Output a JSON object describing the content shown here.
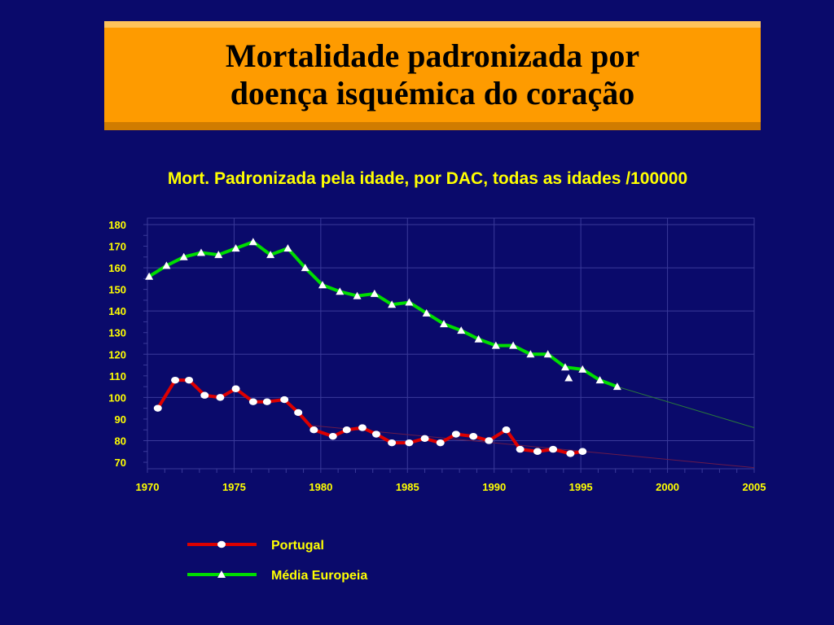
{
  "slide": {
    "title_line1": "Mortalidade padronizada por",
    "title_line2": "doença isquémica do coração",
    "background": "#0a0a6b",
    "title_bg": "#fe9b00"
  },
  "chart_data": {
    "type": "line",
    "title": "Mort. Padronizada pela idade, por DAC, todas as idades /100000",
    "xlabel": "",
    "ylabel": "",
    "xlim": [
      1970,
      2005
    ],
    "ylim": [
      67,
      183
    ],
    "x_ticks": [
      "1970",
      "1975",
      "1980",
      "1985",
      "1990",
      "1995",
      "2000",
      "2005"
    ],
    "y_ticks": [
      "180",
      "170",
      "160",
      "150",
      "140",
      "130",
      "120",
      "110",
      "100",
      "90",
      "80",
      "70"
    ],
    "grid": true,
    "legend_position": "bottom",
    "series": [
      {
        "name": "Portugal",
        "color": "#dd0000",
        "marker": "circle",
        "x": [
          1970.6,
          1971.6,
          1972.4,
          1973.3,
          1974.2,
          1975.1,
          1976.1,
          1976.9,
          1977.9,
          1978.7,
          1979.6,
          1980.7,
          1981.5,
          1982.4,
          1983.2,
          1984.1,
          1985.1,
          1986.0,
          1986.9,
          1987.8,
          1988.8,
          1989.7,
          1990.7,
          1991.5,
          1992.5,
          1993.4,
          1994.4,
          1995.1
        ],
        "values": [
          95,
          108,
          108,
          101,
          100,
          104,
          98,
          98,
          99,
          93,
          85,
          82,
          85,
          86,
          83,
          79,
          79,
          81,
          79,
          83,
          82,
          80,
          85,
          76,
          75,
          76,
          74,
          75
        ]
      },
      {
        "name": "Média Europeia",
        "color": "#00dd00",
        "marker": "triangle",
        "x": [
          1970.1,
          1971.1,
          1972.1,
          1973.1,
          1974.1,
          1975.1,
          1976.1,
          1977.1,
          1978.1,
          1979.1,
          1980.1,
          1981.1,
          1982.1,
          1983.1,
          1984.1,
          1985.1,
          1986.1,
          1987.1,
          1988.1,
          1989.1,
          1990.1,
          1991.1,
          1992.1,
          1993.1,
          1994.1,
          1995.1,
          1996.1,
          1997.1
        ],
        "values": [
          156,
          161,
          165,
          167,
          166,
          169,
          172,
          166,
          169,
          160,
          152,
          149,
          147,
          148,
          143,
          144,
          139,
          134,
          131,
          127,
          124,
          124,
          120,
          120,
          114,
          113,
          108,
          105
        ],
        "extra_points": [
          {
            "x": 1994.3,
            "y": 109
          }
        ]
      }
    ]
  }
}
